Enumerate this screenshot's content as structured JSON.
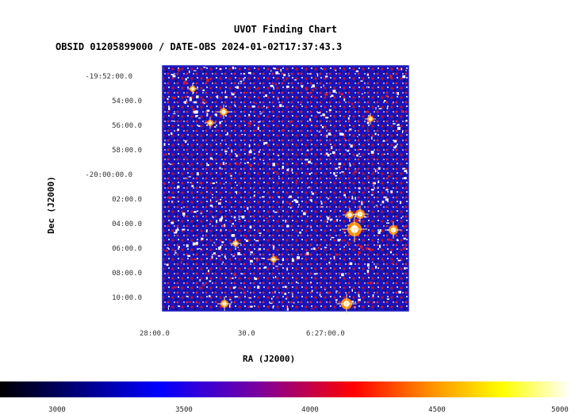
{
  "title": "UVOT Finding Chart",
  "subtitle": "OBSID 01205899000 / DATE-OBS 2024-01-02T17:37:43.3",
  "xlabel": "RA (J2000)",
  "ylabel": "Dec (J2000)",
  "dec_ticks": [
    "-19:52:00.0",
    "54:00.0",
    "56:00.0",
    "58:00.0",
    "-20:00:00.0",
    "02:00.0",
    "04:00.0",
    "06:00.0",
    "08:00.0",
    "10:00.0"
  ],
  "ra_ticks": [
    "28:00.0",
    "30.0",
    "6:27:00.0"
  ],
  "colorbar": {
    "ticks": [
      "3000",
      "3500",
      "4000",
      "4500",
      "5000"
    ],
    "range": [
      2800,
      5000
    ]
  },
  "colors": {
    "frame": "#2020c0",
    "background": "#1a14b8"
  }
}
